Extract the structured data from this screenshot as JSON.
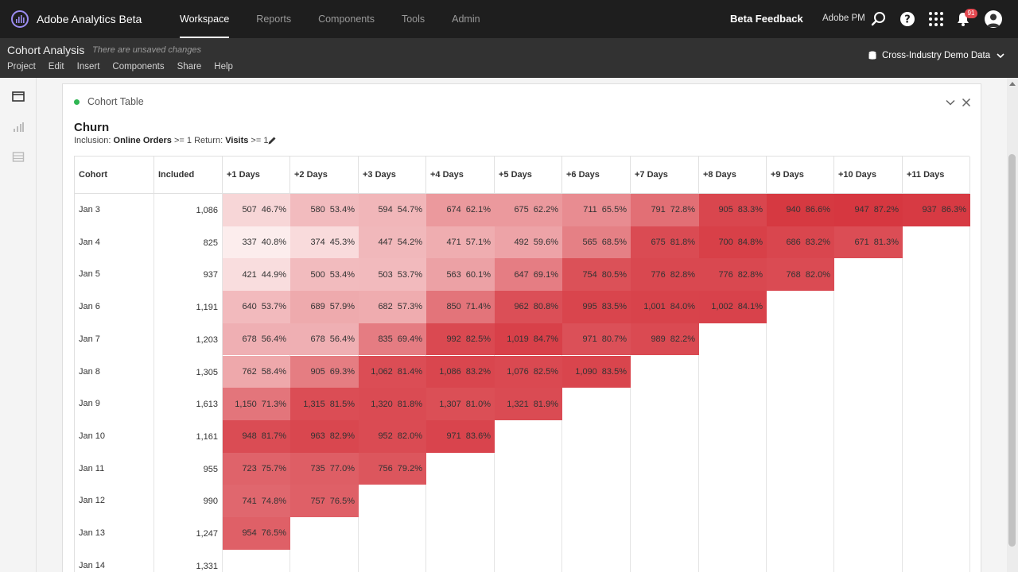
{
  "app": {
    "title": "Adobe Analytics Beta",
    "nav": [
      "Workspace",
      "Reports",
      "Components",
      "Tools",
      "Admin"
    ],
    "active_nav": "Workspace",
    "beta_feedback": "Beta Feedback",
    "org": "Adobe PM",
    "notification_count": "91"
  },
  "project": {
    "title": "Cohort Analysis",
    "unsaved": "There are unsaved changes",
    "menu": [
      "Project",
      "Edit",
      "Insert",
      "Components",
      "Share",
      "Help"
    ],
    "data_source": "Cross-Industry Demo Data"
  },
  "panel": {
    "title": "Cohort Table",
    "viz_title": "Churn",
    "inclusion_label": "Inclusion:",
    "inclusion_metric": "Online Orders",
    "inclusion_rule": ">= 1",
    "return_label": "Return:",
    "return_metric": "Visits",
    "return_rule": ">= 1"
  },
  "colors": {
    "accent": "#d7373f",
    "status": "#2fb653"
  },
  "table": {
    "headers": [
      "Cohort",
      "Included",
      "+1 Days",
      "+2 Days",
      "+3 Days",
      "+4 Days",
      "+5 Days",
      "+6 Days",
      "+7 Days",
      "+8 Days",
      "+9 Days",
      "+10 Days",
      "+11 Days"
    ],
    "rows": [
      {
        "cohort": "Jan 3",
        "included": "1,086",
        "cells": [
          [
            "507",
            "46.7%"
          ],
          [
            "580",
            "53.4%"
          ],
          [
            "594",
            "54.7%"
          ],
          [
            "674",
            "62.1%"
          ],
          [
            "675",
            "62.2%"
          ],
          [
            "711",
            "65.5%"
          ],
          [
            "791",
            "72.8%"
          ],
          [
            "905",
            "83.3%"
          ],
          [
            "940",
            "86.6%"
          ],
          [
            "947",
            "87.2%"
          ],
          [
            "937",
            "86.3%"
          ]
        ]
      },
      {
        "cohort": "Jan 4",
        "included": "825",
        "cells": [
          [
            "337",
            "40.8%"
          ],
          [
            "374",
            "45.3%"
          ],
          [
            "447",
            "54.2%"
          ],
          [
            "471",
            "57.1%"
          ],
          [
            "492",
            "59.6%"
          ],
          [
            "565",
            "68.5%"
          ],
          [
            "675",
            "81.8%"
          ],
          [
            "700",
            "84.8%"
          ],
          [
            "686",
            "83.2%"
          ],
          [
            "671",
            "81.3%"
          ]
        ]
      },
      {
        "cohort": "Jan 5",
        "included": "937",
        "cells": [
          [
            "421",
            "44.9%"
          ],
          [
            "500",
            "53.4%"
          ],
          [
            "503",
            "53.7%"
          ],
          [
            "563",
            "60.1%"
          ],
          [
            "647",
            "69.1%"
          ],
          [
            "754",
            "80.5%"
          ],
          [
            "776",
            "82.8%"
          ],
          [
            "776",
            "82.8%"
          ],
          [
            "768",
            "82.0%"
          ]
        ]
      },
      {
        "cohort": "Jan 6",
        "included": "1,191",
        "cells": [
          [
            "640",
            "53.7%"
          ],
          [
            "689",
            "57.9%"
          ],
          [
            "682",
            "57.3%"
          ],
          [
            "850",
            "71.4%"
          ],
          [
            "962",
            "80.8%"
          ],
          [
            "995",
            "83.5%"
          ],
          [
            "1,001",
            "84.0%"
          ],
          [
            "1,002",
            "84.1%"
          ]
        ]
      },
      {
        "cohort": "Jan 7",
        "included": "1,203",
        "cells": [
          [
            "678",
            "56.4%"
          ],
          [
            "678",
            "56.4%"
          ],
          [
            "835",
            "69.4%"
          ],
          [
            "992",
            "82.5%"
          ],
          [
            "1,019",
            "84.7%"
          ],
          [
            "971",
            "80.7%"
          ],
          [
            "989",
            "82.2%"
          ]
        ]
      },
      {
        "cohort": "Jan 8",
        "included": "1,305",
        "cells": [
          [
            "762",
            "58.4%"
          ],
          [
            "905",
            "69.3%"
          ],
          [
            "1,062",
            "81.4%"
          ],
          [
            "1,086",
            "83.2%"
          ],
          [
            "1,076",
            "82.5%"
          ],
          [
            "1,090",
            "83.5%"
          ]
        ]
      },
      {
        "cohort": "Jan 9",
        "included": "1,613",
        "cells": [
          [
            "1,150",
            "71.3%"
          ],
          [
            "1,315",
            "81.5%"
          ],
          [
            "1,320",
            "81.8%"
          ],
          [
            "1,307",
            "81.0%"
          ],
          [
            "1,321",
            "81.9%"
          ]
        ]
      },
      {
        "cohort": "Jan 10",
        "included": "1,161",
        "cells": [
          [
            "948",
            "81.7%"
          ],
          [
            "963",
            "82.9%"
          ],
          [
            "952",
            "82.0%"
          ],
          [
            "971",
            "83.6%"
          ]
        ]
      },
      {
        "cohort": "Jan 11",
        "included": "955",
        "cells": [
          [
            "723",
            "75.7%"
          ],
          [
            "735",
            "77.0%"
          ],
          [
            "756",
            "79.2%"
          ]
        ]
      },
      {
        "cohort": "Jan 12",
        "included": "990",
        "cells": [
          [
            "741",
            "74.8%"
          ],
          [
            "757",
            "76.5%"
          ]
        ]
      },
      {
        "cohort": "Jan 13",
        "included": "1,247",
        "cells": [
          [
            "954",
            "76.5%"
          ]
        ]
      },
      {
        "cohort": "Jan 14",
        "included": "1,331",
        "cells": []
      }
    ]
  }
}
